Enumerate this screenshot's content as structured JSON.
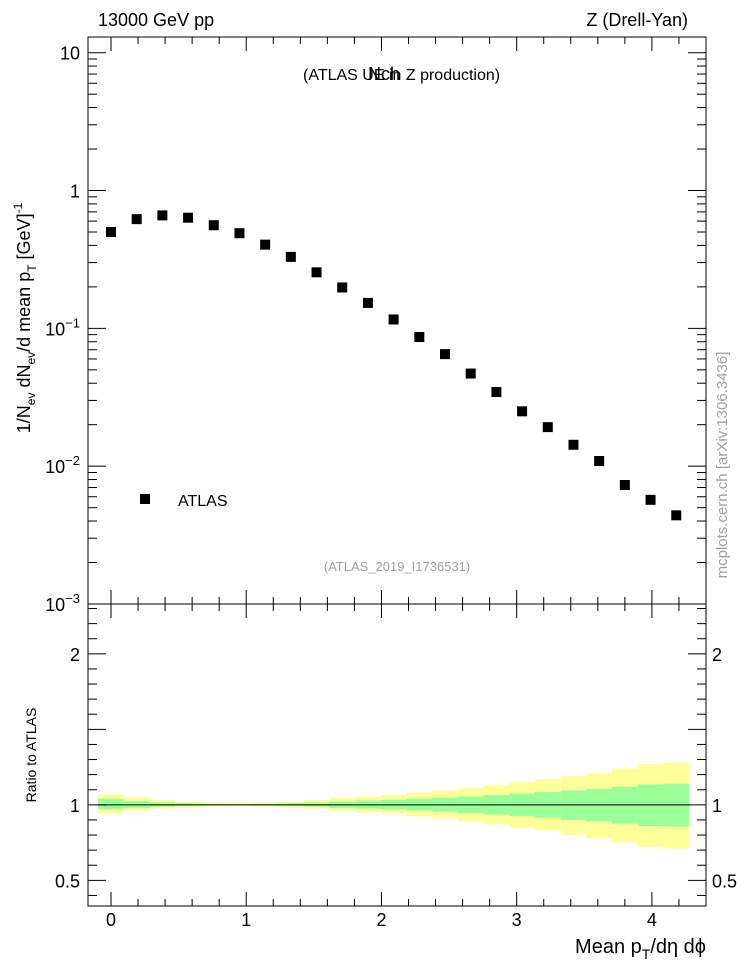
{
  "header": {
    "left": "13000 GeV pp",
    "right": "Z (Drell-Yan)"
  },
  "side_label": "mcplots.cern.ch [arXiv:1306.3436]",
  "watermark": "(ATLAS_2019_I1736531)",
  "colors": {
    "band_outer": "#ffff99",
    "band_inner": "#99ff99",
    "marker": "#000000"
  },
  "chart_data": [
    {
      "type": "scatter",
      "panel": "main",
      "title_main": "Nch",
      "title_sub": "(ATLAS UE in Z production)",
      "ylabel_parts": {
        "a": "1/N",
        "a_sub": "ev",
        "b": " dN",
        "b_sub": "ev",
        "c": "/d mean p",
        "c_sub": "T",
        "d": " [GeV]",
        "d_sup": "-1"
      },
      "yscale": "log",
      "ylim": [
        0.001,
        13
      ],
      "xlim": [
        -0.17,
        4.4
      ],
      "yticks": [
        {
          "value": 10,
          "label": "10"
        },
        {
          "value": 1,
          "label": "1"
        },
        {
          "value": 0.1,
          "base": "10",
          "exp": "−1"
        },
        {
          "value": 0.01,
          "base": "10",
          "exp": "−2"
        },
        {
          "value": 0.001,
          "base": "10",
          "exp": "−3"
        }
      ],
      "legend": {
        "label": "ATLAS",
        "position": "lower-left"
      },
      "series": [
        {
          "name": "ATLAS",
          "marker": "square",
          "x": [
            0.0,
            0.19,
            0.38,
            0.57,
            0.76,
            0.95,
            1.14,
            1.33,
            1.52,
            1.71,
            1.9,
            2.09,
            2.28,
            2.47,
            2.66,
            2.85,
            3.04,
            3.23,
            3.42,
            3.61,
            3.8,
            3.99,
            4.18
          ],
          "y": [
            0.5,
            0.62,
            0.66,
            0.635,
            0.56,
            0.49,
            0.405,
            0.33,
            0.255,
            0.198,
            0.153,
            0.116,
            0.0865,
            0.065,
            0.047,
            0.0345,
            0.025,
            0.0192,
            0.0143,
            0.0109,
            0.0073,
            0.0057,
            0.0044
          ]
        }
      ]
    },
    {
      "type": "area",
      "panel": "ratio",
      "ylabel": "Ratio to ATLAS",
      "xlabel_parts": {
        "a": "Mean p",
        "a_sub": "T",
        "b": "/dη dϕ"
      },
      "ylim": [
        0.33,
        2.33
      ],
      "xlim": [
        -0.17,
        4.4
      ],
      "yticks": [
        {
          "value": 0.5,
          "label": "0.5"
        },
        {
          "value": 1,
          "label": "1"
        },
        {
          "value": 2,
          "label": "2"
        }
      ],
      "xticks": [
        {
          "value": 0,
          "label": "0"
        },
        {
          "value": 1,
          "label": "1"
        },
        {
          "value": 2,
          "label": "2"
        },
        {
          "value": 3,
          "label": "3"
        },
        {
          "value": 4,
          "label": "4"
        }
      ],
      "bin_edges": [
        -0.095,
        0.095,
        0.285,
        0.475,
        0.665,
        0.855,
        1.045,
        1.235,
        1.425,
        1.615,
        1.805,
        1.995,
        2.185,
        2.375,
        2.565,
        2.755,
        2.945,
        3.135,
        3.325,
        3.515,
        3.705,
        3.895,
        4.085,
        4.275
      ],
      "outer_band": [
        [
          0.94,
          1.07
        ],
        [
          0.96,
          1.05
        ],
        [
          0.975,
          1.03
        ],
        [
          0.985,
          1.02
        ],
        [
          0.99,
          1.015
        ],
        [
          0.992,
          1.012
        ],
        [
          0.99,
          1.015
        ],
        [
          0.985,
          1.02
        ],
        [
          0.975,
          1.03
        ],
        [
          0.96,
          1.045
        ],
        [
          0.95,
          1.055
        ],
        [
          0.94,
          1.065
        ],
        [
          0.925,
          1.08
        ],
        [
          0.91,
          1.095
        ],
        [
          0.89,
          1.11
        ],
        [
          0.87,
          1.13
        ],
        [
          0.85,
          1.15
        ],
        [
          0.83,
          1.17
        ],
        [
          0.8,
          1.19
        ],
        [
          0.78,
          1.21
        ],
        [
          0.75,
          1.24
        ],
        [
          0.72,
          1.27
        ],
        [
          0.71,
          1.28
        ]
      ],
      "inner_band": [
        [
          0.97,
          1.04
        ],
        [
          0.98,
          1.025
        ],
        [
          0.988,
          1.015
        ],
        [
          0.993,
          1.01
        ],
        [
          0.995,
          1.007
        ],
        [
          0.996,
          1.006
        ],
        [
          0.995,
          1.007
        ],
        [
          0.993,
          1.01
        ],
        [
          0.988,
          1.015
        ],
        [
          0.98,
          1.022
        ],
        [
          0.975,
          1.028
        ],
        [
          0.97,
          1.033
        ],
        [
          0.962,
          1.04
        ],
        [
          0.955,
          1.048
        ],
        [
          0.945,
          1.055
        ],
        [
          0.935,
          1.065
        ],
        [
          0.925,
          1.075
        ],
        [
          0.915,
          1.085
        ],
        [
          0.9,
          1.095
        ],
        [
          0.89,
          1.105
        ],
        [
          0.875,
          1.12
        ],
        [
          0.86,
          1.135
        ],
        [
          0.855,
          1.14
        ]
      ],
      "reference_line": 1
    }
  ]
}
